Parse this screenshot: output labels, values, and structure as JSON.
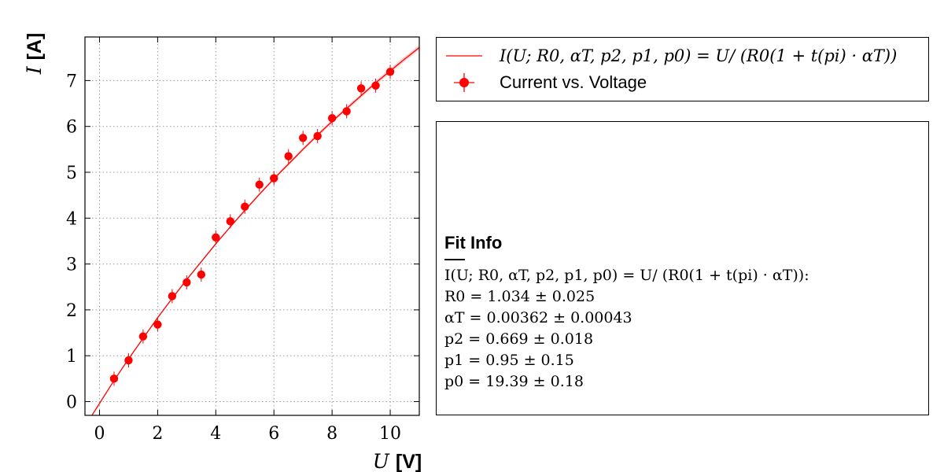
{
  "chart_data": {
    "type": "scatter",
    "xlabel": {
      "var": "U",
      "unit": "[V]"
    },
    "ylabel": {
      "var": "I",
      "unit": "[A]"
    },
    "xlim": [
      -0.5,
      11.0
    ],
    "ylim": [
      -0.3,
      7.95
    ],
    "xticks": [
      0,
      2,
      4,
      6,
      8,
      10
    ],
    "yticks": [
      0,
      1,
      2,
      3,
      4,
      5,
      6,
      7
    ],
    "xtick_labels": [
      "0",
      "2",
      "4",
      "6",
      "8",
      "10"
    ],
    "ytick_labels": [
      "0",
      "1",
      "2",
      "3",
      "4",
      "5",
      "6",
      "7"
    ],
    "grid": true,
    "series": [
      {
        "name": "Current vs. Voltage",
        "kind": "points",
        "color": "#ff0000",
        "x": [
          0.5,
          1.0,
          1.5,
          2.0,
          2.5,
          3.0,
          3.5,
          4.0,
          4.5,
          5.0,
          5.5,
          6.0,
          6.5,
          7.0,
          7.5,
          8.0,
          8.5,
          9.0,
          9.5,
          10.0
        ],
        "y": [
          0.5,
          0.9,
          1.42,
          1.68,
          2.3,
          2.6,
          2.77,
          3.58,
          3.93,
          4.25,
          4.73,
          4.87,
          5.35,
          5.75,
          5.79,
          6.18,
          6.33,
          6.83,
          6.89,
          7.19
        ]
      },
      {
        "name": "I(U; R_0, α_T, p_2, p_1, p_0) = U/ (R_0(1 + t(p_i) · α_T))",
        "kind": "fit-curve",
        "color": "#ff0000",
        "x": [
          -0.25,
          0.0,
          0.5,
          1.0,
          1.5,
          2.0,
          2.5,
          3.0,
          3.5,
          4.0,
          4.5,
          5.0,
          5.5,
          6.0,
          6.5,
          7.0,
          7.5,
          8.0,
          8.5,
          9.0,
          9.5,
          10.0,
          10.5,
          11.0
        ],
        "y": [
          -0.29,
          -0.04,
          0.46,
          0.93,
          1.38,
          1.83,
          2.25,
          2.66,
          3.05,
          3.44,
          3.81,
          4.17,
          4.52,
          4.86,
          5.18,
          5.5,
          5.81,
          6.11,
          6.39,
          6.67,
          6.95,
          7.21,
          7.47,
          7.72
        ]
      }
    ],
    "legend": {
      "position": "outside-right-top",
      "entries": [
        {
          "label": "I(U; R_0, α_T, p_2, p_1, p_0) = U/ (R_0(1 + t(p_i) · α_T))",
          "style": "line"
        },
        {
          "label": "Current vs. Voltage",
          "style": "marker-errorbar"
        }
      ]
    }
  },
  "legend_text": {
    "fit_label": "I(U; R0, αT, p2, p1, p0) = U/ (R0(1 + t(pi) · αT))",
    "data_label": "Current vs. Voltage"
  },
  "fit_info": {
    "title": "Fit Info",
    "formula": "I(U; R0, αT, p2, p1, p0) = U/ (R0(1 + t(pi) · αT)):",
    "params": [
      {
        "symbol": "R0",
        "text": "R0 = 1.034 ± 0.025"
      },
      {
        "symbol": "αT",
        "text": "αT = 0.00362 ± 0.00043"
      },
      {
        "symbol": "p2",
        "text": "p2 = 0.669 ± 0.018"
      },
      {
        "symbol": "p1",
        "text": "p1 = 0.95 ± 0.15"
      },
      {
        "symbol": "p0",
        "text": "p0 = 19.39 ± 0.18"
      }
    ]
  },
  "colors": {
    "data": "#ff0000",
    "fit": "#ff0000",
    "band": "#ffb3b3",
    "grid": "#9a9a9a",
    "frame": "#000000"
  }
}
